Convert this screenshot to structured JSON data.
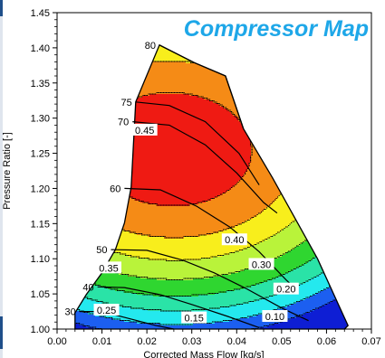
{
  "chart_data": {
    "type": "area",
    "title": "Compressor Map",
    "xlabel": "Corrected Mass Flow [kg/s]",
    "ylabel": "Pressure Ratio [-]",
    "xlim": [
      0.0,
      0.07
    ],
    "ylim": [
      1.0,
      1.45
    ],
    "x_ticks": [
      "0.00",
      "0.01",
      "0.02",
      "0.03",
      "0.04",
      "0.05",
      "0.06",
      "0.07"
    ],
    "y_ticks": [
      "1.00",
      "1.05",
      "1.10",
      "1.15",
      "1.20",
      "1.25",
      "1.30",
      "1.35",
      "1.40",
      "1.45"
    ],
    "title_color": "#1ea7e8",
    "outline": {
      "name": "map boundary",
      "x": [
        0.004,
        0.0065,
        0.01,
        0.013,
        0.015,
        0.0165,
        0.0175,
        0.0228,
        0.0305,
        0.0375,
        0.0415,
        0.048,
        0.058,
        0.0648,
        0.064,
        0.004
      ],
      "y": [
        1.023,
        1.049,
        1.08,
        1.113,
        1.151,
        1.202,
        1.323,
        1.404,
        1.379,
        1.36,
        1.285,
        1.215,
        1.1,
        1.005,
        1.0,
        1.0
      ]
    },
    "efficiency_bands": [
      {
        "min": 0.45,
        "color": "#ef1a13"
      },
      {
        "min": 0.4,
        "max": 0.45,
        "color": "#f58b16"
      },
      {
        "min": 0.35,
        "max": 0.4,
        "color": "#f8ee1c"
      },
      {
        "min": 0.3,
        "max": 0.35,
        "color": "#b9f33a"
      },
      {
        "min": 0.25,
        "max": 0.3,
        "color": "#2fd630"
      },
      {
        "min": 0.2,
        "max": 0.25,
        "color": "#2ae3a7"
      },
      {
        "min": 0.15,
        "max": 0.2,
        "color": "#24e9ee"
      },
      {
        "min": 0.1,
        "max": 0.15,
        "color": "#1c5ff0"
      },
      {
        "max": 0.1,
        "color": "#0e1ed4"
      }
    ],
    "speed_lines": [
      {
        "label": "80",
        "x": [
          0.0228,
          0.0305,
          0.0375,
          0.0415
        ],
        "y": [
          1.404,
          1.379,
          1.36,
          1.285
        ]
      },
      {
        "label": "75",
        "x": [
          0.0175,
          0.025,
          0.033,
          0.0405,
          0.045
        ],
        "y": [
          1.323,
          1.318,
          1.295,
          1.25,
          1.205
        ]
      },
      {
        "label": "70",
        "x": [
          0.0168,
          0.025,
          0.033,
          0.04,
          0.046,
          0.049
        ],
        "y": [
          1.295,
          1.29,
          1.262,
          1.222,
          1.18,
          1.165
        ]
      },
      {
        "label": "60",
        "x": [
          0.015,
          0.023,
          0.031,
          0.0385,
          0.045,
          0.051,
          0.0535
        ],
        "y": [
          1.2,
          1.198,
          1.175,
          1.145,
          1.11,
          1.07,
          1.055
        ]
      },
      {
        "label": "50",
        "x": [
          0.012,
          0.02,
          0.028,
          0.035,
          0.042,
          0.05,
          0.056
        ],
        "y": [
          1.113,
          1.112,
          1.098,
          1.08,
          1.058,
          1.03,
          1.012
        ]
      },
      {
        "label": "40",
        "x": [
          0.009,
          0.015,
          0.023,
          0.03,
          0.038,
          0.045
        ],
        "y": [
          1.06,
          1.059,
          1.049,
          1.035,
          1.018,
          1.002
        ]
      },
      {
        "label": "30",
        "x": [
          0.005,
          0.01,
          0.016,
          0.022,
          0.026
        ],
        "y": [
          1.025,
          1.025,
          1.015,
          1.005,
          1.0
        ]
      }
    ],
    "efficiency_labels": [
      {
        "label": "0.45",
        "x": 0.0195,
        "y": 1.283
      },
      {
        "label": "0.40",
        "x": 0.0395,
        "y": 1.127
      },
      {
        "label": "0.35",
        "x": 0.0115,
        "y": 1.087
      },
      {
        "label": "0.30",
        "x": 0.0455,
        "y": 1.092
      },
      {
        "label": "0.25",
        "x": 0.011,
        "y": 1.027
      },
      {
        "label": "0.20",
        "x": 0.051,
        "y": 1.057
      },
      {
        "label": "0.15",
        "x": 0.0305,
        "y": 1.016
      },
      {
        "label": "0.10",
        "x": 0.0485,
        "y": 1.018
      }
    ]
  }
}
